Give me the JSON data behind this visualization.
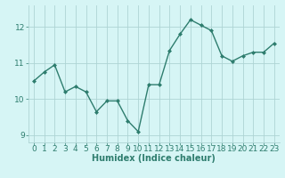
{
  "x": [
    0,
    1,
    2,
    3,
    4,
    5,
    6,
    7,
    8,
    9,
    10,
    11,
    12,
    13,
    14,
    15,
    16,
    17,
    18,
    19,
    20,
    21,
    22,
    23
  ],
  "y": [
    10.5,
    10.75,
    10.95,
    10.2,
    10.35,
    10.2,
    9.65,
    9.95,
    9.95,
    9.4,
    9.1,
    10.4,
    10.4,
    11.35,
    11.8,
    12.2,
    12.05,
    11.9,
    11.2,
    11.05,
    11.2,
    11.3,
    11.3,
    11.55
  ],
  "line_color": "#2e7d6e",
  "marker": "D",
  "marker_size": 2.0,
  "linewidth": 1.0,
  "bg_color": "#d6f5f5",
  "grid_color": "#aed4d4",
  "xlabel": "Humidex (Indice chaleur)",
  "xlabel_fontsize": 7,
  "ylim": [
    8.8,
    12.6
  ],
  "xlim": [
    -0.5,
    23.5
  ],
  "yticks": [
    9,
    10,
    11,
    12
  ],
  "xticks": [
    0,
    1,
    2,
    3,
    4,
    5,
    6,
    7,
    8,
    9,
    10,
    11,
    12,
    13,
    14,
    15,
    16,
    17,
    18,
    19,
    20,
    21,
    22,
    23
  ],
  "tick_fontsize": 6.5
}
